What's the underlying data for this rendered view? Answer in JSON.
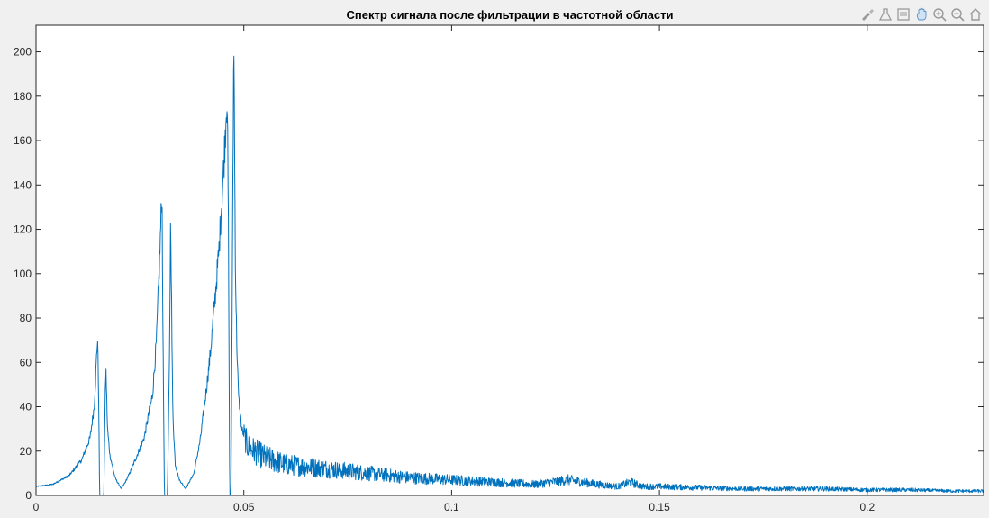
{
  "toolbar": {
    "icons": [
      "brush-icon",
      "flask-icon",
      "datatip-icon",
      "pan-hand-icon",
      "zoom-in-icon",
      "zoom-out-icon",
      "home-icon"
    ]
  },
  "chart_data": {
    "type": "line",
    "title": "Спектр сигнала после фильтрации в частотной области",
    "xlabel": "",
    "ylabel": "",
    "xlim": [
      0,
      0.228
    ],
    "ylim": [
      0,
      212
    ],
    "grid": false,
    "x_ticks": [
      0,
      0.05,
      0.1,
      0.15,
      0.2
    ],
    "x_tick_labels": [
      "0",
      "0.05",
      "0.1",
      "0.15",
      "0.2"
    ],
    "y_ticks": [
      0,
      20,
      40,
      60,
      80,
      100,
      120,
      140,
      160,
      180,
      200
    ],
    "y_tick_labels": [
      "0",
      "20",
      "40",
      "60",
      "80",
      "100",
      "120",
      "140",
      "160",
      "180",
      "200"
    ],
    "line_color": "#0072bd",
    "series": [
      {
        "name": "",
        "x": [
          0,
          0.004,
          0.008,
          0.011,
          0.013,
          0.014,
          0.0145,
          0.0148,
          0.0151,
          0.0153,
          0.0156,
          0.0163,
          0.0166,
          0.0168,
          0.0172,
          0.0178,
          0.019,
          0.0205,
          0.0215,
          0.023,
          0.026,
          0.028,
          0.029,
          0.0298,
          0.0303,
          0.0306,
          0.0309,
          0.0316,
          0.0321,
          0.0324,
          0.0327,
          0.0329,
          0.0332,
          0.0335,
          0.0345,
          0.036,
          0.038,
          0.0395,
          0.0405,
          0.042,
          0.044,
          0.0452,
          0.046,
          0.0463,
          0.0466,
          0.0469,
          0.0473,
          0.0476,
          0.0478,
          0.048,
          0.0483,
          0.0487,
          0.0495,
          0.051,
          0.055,
          0.06,
          0.07,
          0.08,
          0.09,
          0.1,
          0.11,
          0.12,
          0.128,
          0.135,
          0.14,
          0.143,
          0.146,
          0.15,
          0.16,
          0.17,
          0.18,
          0.19,
          0.2,
          0.21,
          0.22,
          0.228
        ],
        "values": [
          4,
          5,
          9,
          16,
          26,
          40,
          60,
          72,
          40,
          0,
          0,
          0,
          40,
          58,
          30,
          18,
          8,
          3,
          6,
          12,
          26,
          45,
          70,
          110,
          138,
          60,
          0,
          0,
          60,
          129,
          70,
          40,
          25,
          14,
          7,
          3,
          10,
          25,
          40,
          65,
          110,
          150,
          183,
          120,
          0,
          0,
          120,
          211,
          150,
          100,
          70,
          45,
          30,
          22,
          17,
          14,
          12,
          10,
          8,
          7,
          6,
          5,
          7,
          5,
          4,
          6,
          4,
          4,
          3.5,
          3,
          3,
          3,
          2.5,
          2.5,
          2,
          2
        ]
      }
    ]
  }
}
